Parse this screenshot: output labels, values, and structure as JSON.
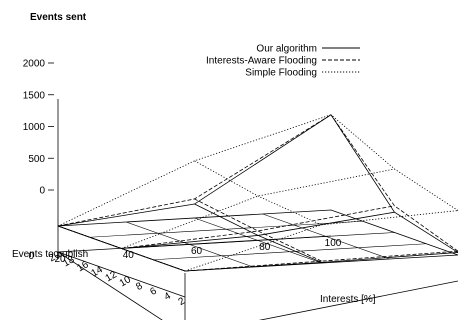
{
  "chart_data": {
    "type": "surface-3d",
    "title": "Events sent",
    "xlabel": "Events to publish",
    "ylabel": "Interests [%]",
    "zlabel": "",
    "x_ticks": [
      "2",
      "4",
      "6",
      "8",
      "10",
      "12",
      "14",
      "16",
      "18",
      "20"
    ],
    "y_ticks": [
      "20",
      "40",
      "60",
      "80",
      "100"
    ],
    "z_ticks": [
      "0",
      "500",
      "1000",
      "1500",
      "2000"
    ],
    "z_base_label": "0",
    "xlim": [
      2,
      20
    ],
    "ylim": [
      20,
      100
    ],
    "zlim": [
      0,
      2000
    ],
    "x": [
      2,
      11,
      20
    ],
    "y": [
      20,
      60,
      100
    ],
    "legend_position": "top-right",
    "series": [
      {
        "name": "Our algorithm",
        "style": "solid",
        "z": [
          [
            0,
            10,
            40
          ],
          [
            0,
            80,
            320
          ],
          [
            0,
            220,
            1500
          ]
        ]
      },
      {
        "name": "Interests-Aware Flooding",
        "style": "dashed",
        "z": [
          [
            0,
            30,
            60
          ],
          [
            0,
            150,
            420
          ],
          [
            0,
            300,
            1500
          ]
        ]
      },
      {
        "name": "Simple Flooding",
        "style": "dotted",
        "z": [
          [
            0,
            600,
            700
          ],
          [
            0,
            700,
            1000
          ],
          [
            0,
            900,
            1500
          ]
        ]
      }
    ]
  }
}
